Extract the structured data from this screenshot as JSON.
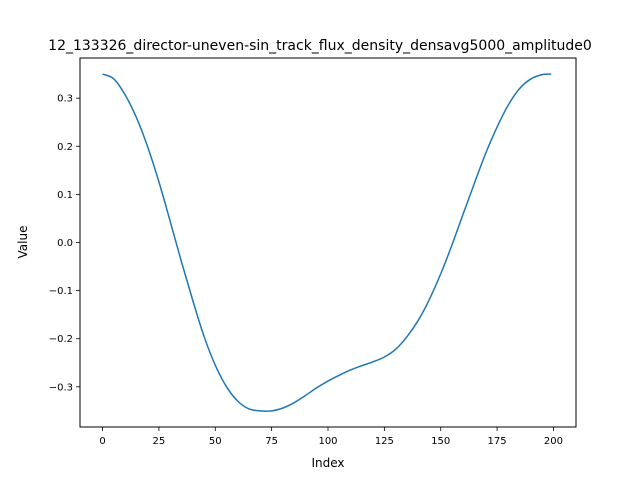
{
  "chart_data": {
    "type": "line",
    "title": "12_133326_director-uneven-sin_track_flux_density_densavg5000_amplitude0",
    "xlabel": "Index",
    "ylabel": "Value",
    "xlim": [
      -10,
      210
    ],
    "ylim": [
      -0.3835,
      0.3835
    ],
    "x_ticks": [
      0,
      25,
      50,
      75,
      100,
      125,
      150,
      175,
      200
    ],
    "x_tick_labels": [
      "0",
      "25",
      "50",
      "75",
      "100",
      "125",
      "150",
      "175",
      "200"
    ],
    "y_ticks": [
      0.3,
      0.2,
      0.1,
      0.0,
      -0.1,
      -0.2,
      -0.3
    ],
    "y_tick_labels": [
      "0.3",
      "0.2",
      "0.1",
      "0.0",
      "−0.1",
      "−0.2",
      "−0.3"
    ],
    "grid": false,
    "line_color": "#1f77b4",
    "series": [
      {
        "x": [
          0,
          5,
          10,
          15,
          20,
          25,
          30,
          35,
          40,
          45,
          50,
          55,
          60,
          65,
          70,
          75,
          80,
          85,
          90,
          95,
          100,
          105,
          110,
          115,
          120,
          125,
          130,
          135,
          140,
          145,
          150,
          155,
          160,
          165,
          170,
          175,
          180,
          185,
          190,
          195,
          199
        ],
        "y": [
          0.35,
          0.34,
          0.307,
          0.26,
          0.199,
          0.126,
          0.044,
          -0.04,
          -0.12,
          -0.195,
          -0.255,
          -0.3,
          -0.33,
          -0.346,
          -0.35,
          -0.35,
          -0.344,
          -0.333,
          -0.318,
          -0.302,
          -0.288,
          -0.276,
          -0.265,
          -0.256,
          -0.248,
          -0.238,
          -0.222,
          -0.196,
          -0.162,
          -0.118,
          -0.065,
          -0.005,
          0.06,
          0.124,
          0.186,
          0.24,
          0.286,
          0.32,
          0.34,
          0.349,
          0.35
        ]
      }
    ]
  }
}
